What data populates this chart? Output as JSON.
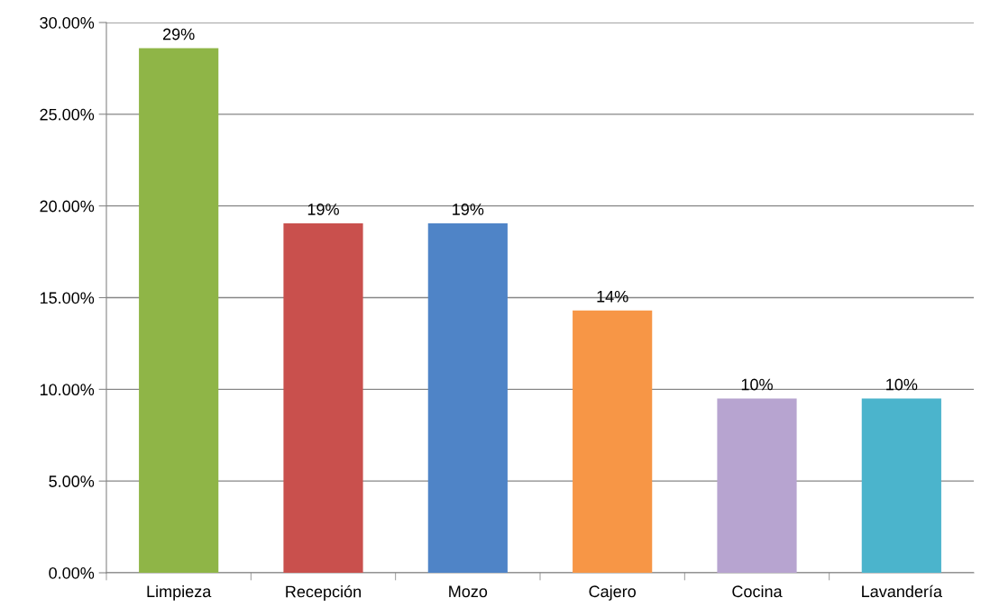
{
  "chart_data": {
    "type": "bar",
    "categories": [
      "Limpieza",
      "Recepción",
      "Mozo",
      "Cajero",
      "Cocina",
      "Lavandería"
    ],
    "values": [
      28.6,
      19.05,
      19.05,
      14.3,
      9.5,
      9.5
    ],
    "value_labels": [
      "29%",
      "19%",
      "19%",
      "14%",
      "10%",
      "10%"
    ],
    "colors": [
      "#8fb547",
      "#c9504d",
      "#4f84c7",
      "#f79646",
      "#b7a4d0",
      "#4bb4cc"
    ],
    "ylim": [
      0,
      30
    ],
    "yticks": [
      {
        "value": 0,
        "label": "0.00%"
      },
      {
        "value": 5,
        "label": "5.00%"
      },
      {
        "value": 10,
        "label": "10.00%"
      },
      {
        "value": 15,
        "label": "15.00%"
      },
      {
        "value": 20,
        "label": "20.00%"
      },
      {
        "value": 25,
        "label": "25.00%"
      },
      {
        "value": 30,
        "label": "30.00%"
      }
    ],
    "grid": "y",
    "legend": false
  }
}
